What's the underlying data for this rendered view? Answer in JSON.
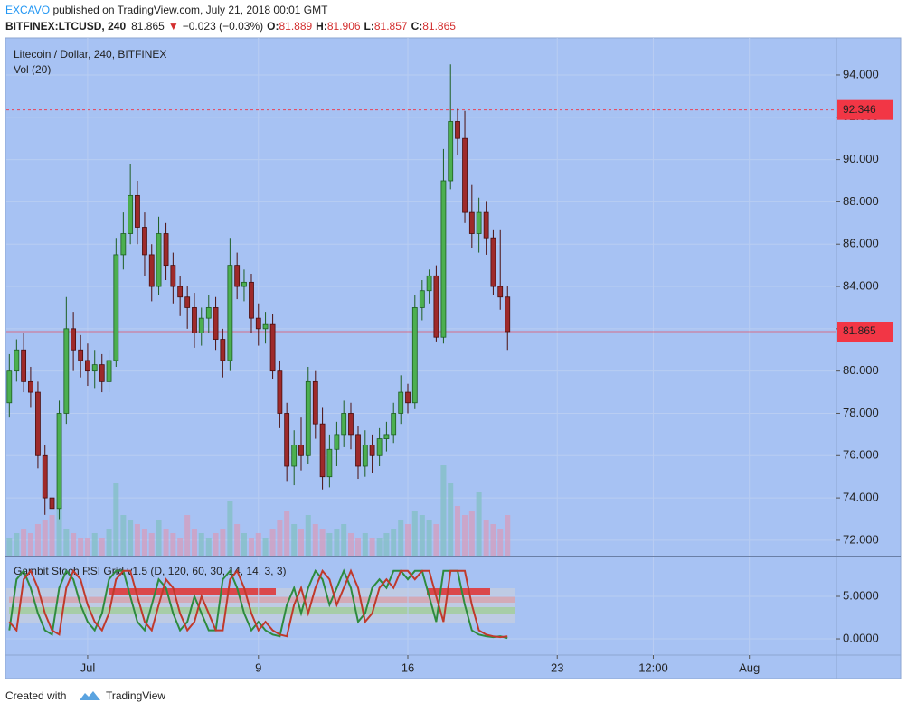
{
  "header": {
    "author": "EXCAVO",
    "published": " published on TradingView.com, July 21, 2018 00:01 GMT",
    "symbol": "BITFINEX:LTCUSD, 240",
    "last": "81.865",
    "arrow": "▼",
    "change": "−0.023 (−0.03%)",
    "o_label": "O:",
    "o_value": "81.889",
    "h_label": "H:",
    "h_value": "81.906",
    "l_label": "L:",
    "l_value": "81.857",
    "c_label": "C:",
    "c_value": "81.865"
  },
  "footer": {
    "created": "Created with",
    "brand": "TradingView"
  },
  "chart_data": [
    {
      "type": "candlestick",
      "title": "Litecoin / Dollar, 240, BITFINEX",
      "subtitle": "Vol (20)",
      "up_color": "#4caf50",
      "down_color": "#9e2a2a",
      "volume_up_color": "#7fbfbf",
      "volume_down_color": "#d99ab8",
      "xlim": [
        -2.81,
        36.08
      ],
      "xticks": [
        {
          "value": 1,
          "label": "Jul"
        },
        9,
        16,
        23,
        {
          "value": 27.5,
          "label": "12:00"
        },
        {
          "value": 32,
          "label": "Aug"
        }
      ],
      "ylim": [
        71.27,
        95.75
      ],
      "yticks": [
        {
          "value": 72,
          "label": "72.000"
        },
        {
          "value": 74,
          "label": "74.000"
        },
        {
          "value": 76,
          "label": "76.000"
        },
        {
          "value": 78,
          "label": "78.000"
        },
        {
          "value": 80,
          "label": "80.000"
        },
        {
          "value": 82,
          "label": "82.000"
        },
        {
          "value": 84,
          "label": "84.000"
        },
        {
          "value": 86,
          "label": "86.000"
        },
        {
          "value": 88,
          "label": "88.000"
        },
        {
          "value": 90,
          "label": "90.000"
        },
        {
          "value": 92,
          "label": "92.000"
        },
        {
          "value": 94,
          "label": "94.000"
        }
      ],
      "grid": true,
      "price_lines": [
        {
          "value": 92.346,
          "color": "#f23645",
          "dashed": true
        },
        {
          "value": 81.865,
          "color": "#f23645",
          "dashed": false
        }
      ],
      "x": [
        -2.67,
        -2.33,
        -2,
        -1.67,
        -1.33,
        -1,
        -0.67,
        -0.33,
        0,
        0.33,
        0.67,
        1,
        1.33,
        1.67,
        2,
        2.33,
        2.67,
        3,
        3.33,
        3.67,
        4,
        4.33,
        4.67,
        5,
        5.33,
        5.67,
        6,
        6.33,
        6.67,
        7,
        7.33,
        7.67,
        8,
        8.33,
        8.67,
        9,
        9.33,
        9.67,
        10,
        10.33,
        10.67,
        11,
        11.33,
        11.67,
        12,
        12.33,
        12.67,
        13,
        13.33,
        13.67,
        14,
        14.33,
        14.67,
        15,
        15.33,
        15.67,
        16,
        16.33,
        16.67,
        17,
        17.33,
        17.67,
        18,
        18.33,
        18.67,
        19,
        19.33,
        19.67,
        20,
        20.33,
        20.67
      ],
      "open": [
        78.5,
        80,
        81,
        79.5,
        79,
        76,
        74,
        73.5,
        78,
        82,
        81,
        80.5,
        80,
        80.3,
        79.5,
        80.5,
        85.5,
        86.5,
        88.3,
        86.8,
        85.5,
        84,
        86.5,
        85,
        84,
        83.5,
        83,
        81.8,
        82.5,
        83,
        81.5,
        80.5,
        85,
        84,
        84.2,
        82.5,
        82,
        82.2,
        80,
        78,
        75.5,
        76.5,
        76,
        79.5,
        77.5,
        75,
        76.3,
        77,
        78,
        77,
        75.5,
        76.5,
        76,
        76.8,
        77,
        78,
        79,
        78.5,
        83,
        83.8,
        84.5,
        81.6,
        89,
        91.8,
        91,
        87.5,
        86.5,
        87.5,
        86.3,
        84,
        83.5
      ],
      "high": [
        80.8,
        81.5,
        81.8,
        80.2,
        79.5,
        76.5,
        74.4,
        78.6,
        83.5,
        82.8,
        81.7,
        81.3,
        81,
        80.8,
        81,
        86.3,
        87.5,
        89.8,
        89,
        87.5,
        86,
        87.3,
        87,
        85.6,
        84.5,
        84,
        83.7,
        83,
        83.6,
        83.5,
        82,
        86.3,
        85.6,
        84.8,
        84.6,
        83.2,
        82.8,
        82.7,
        80.5,
        78.5,
        77.2,
        77.8,
        80.2,
        80,
        78.3,
        77,
        77.6,
        78.6,
        78.5,
        77.4,
        77.2,
        77,
        77.3,
        77.6,
        78.5,
        79.8,
        79.4,
        83.6,
        84.3,
        84.8,
        85,
        90.5,
        94.5,
        92.4,
        92.3,
        88.8,
        88.2,
        88,
        86.7,
        86.7,
        84
      ],
      "low": [
        77.8,
        79.5,
        79,
        78.3,
        75.4,
        73.2,
        72.6,
        73,
        77.5,
        80,
        79.7,
        79.3,
        79.2,
        79,
        79,
        80.2,
        84.8,
        86,
        86,
        84.5,
        83.3,
        83.6,
        84.3,
        83.2,
        82.6,
        82,
        81.1,
        81.2,
        81.8,
        81,
        79.7,
        80,
        83.4,
        83.3,
        81.8,
        81.2,
        81.3,
        79.6,
        77.3,
        74.8,
        74.6,
        75.3,
        75.6,
        76.8,
        74.4,
        74.5,
        75.5,
        76.4,
        76.3,
        74.9,
        75,
        75.2,
        75.5,
        76.2,
        76.6,
        77.5,
        78,
        78.2,
        82.4,
        83.2,
        81.4,
        81.3,
        88.6,
        90.2,
        87,
        85.8,
        85.6,
        85.5,
        83.6,
        82.9,
        81
      ],
      "close": [
        80,
        81,
        79.5,
        79,
        76,
        74,
        73.5,
        78,
        82,
        81,
        80.5,
        80,
        80.3,
        79.5,
        80.5,
        85.5,
        86.5,
        88.3,
        86.8,
        85.5,
        84,
        86.5,
        85,
        84,
        83.5,
        83,
        81.8,
        82.5,
        83,
        81.5,
        80.5,
        85,
        84,
        84.2,
        82.5,
        82,
        82.2,
        80,
        78,
        75.5,
        76.5,
        76,
        79.5,
        77.5,
        75,
        76.3,
        77,
        78,
        77,
        75.5,
        76.5,
        76,
        76.8,
        77,
        78,
        79,
        78.5,
        83,
        83.8,
        84.5,
        81.6,
        89,
        91.8,
        91,
        87.5,
        86.5,
        87.5,
        86.3,
        84,
        83.5,
        81.865
      ],
      "volume": [
        20,
        25,
        30,
        25,
        35,
        40,
        45,
        55,
        30,
        25,
        20,
        20,
        25,
        20,
        30,
        80,
        45,
        40,
        35,
        30,
        25,
        40,
        30,
        25,
        20,
        45,
        30,
        25,
        20,
        25,
        30,
        60,
        35,
        25,
        20,
        25,
        20,
        30,
        40,
        50,
        35,
        30,
        45,
        35,
        30,
        25,
        30,
        35,
        25,
        20,
        25,
        20,
        20,
        25,
        30,
        40,
        35,
        50,
        45,
        40,
        35,
        100,
        80,
        55,
        45,
        50,
        70,
        40,
        35,
        30,
        45
      ]
    },
    {
      "type": "line",
      "title": "Gambit Stoch RSI Grid v1.5 (D, 120, 60, 30, 14, 14, 3, 3)",
      "ylim": [
        -1.91,
        9.57
      ],
      "yticks": [
        {
          "value": 0,
          "label": "0.0000"
        },
        {
          "value": 5,
          "label": "5.0000"
        }
      ],
      "x": [
        -2.67,
        -2.33,
        -2,
        -1.67,
        -1.33,
        -1,
        -0.67,
        -0.33,
        0,
        0.33,
        0.67,
        1,
        1.33,
        1.67,
        2,
        2.33,
        2.67,
        3,
        3.33,
        3.67,
        4,
        4.33,
        4.67,
        5,
        5.33,
        5.67,
        6,
        6.33,
        6.67,
        7,
        7.33,
        7.67,
        8,
        8.33,
        8.67,
        9,
        9.33,
        9.67,
        10,
        10.33,
        10.67,
        11,
        11.33,
        11.67,
        12,
        12.33,
        12.67,
        13,
        13.33,
        13.67,
        14,
        14.33,
        14.67,
        15,
        15.33,
        15.67,
        16,
        16.33,
        16.67,
        17,
        17.33,
        17.67,
        18,
        18.33,
        18.67,
        19,
        19.33,
        19.67,
        20,
        20.33,
        20.67
      ],
      "series": [
        {
          "color": "#2e8b3e",
          "values": [
            1,
            7,
            8,
            6,
            3,
            1,
            0.5,
            6,
            8,
            7,
            4,
            2,
            1,
            3,
            7,
            8,
            8,
            5,
            2,
            1,
            4,
            7,
            6,
            3,
            1,
            2,
            5,
            3,
            1,
            1,
            7,
            8,
            6,
            3,
            1,
            2,
            1,
            0.5,
            0.3,
            4,
            6,
            3,
            6,
            8,
            7,
            4,
            6,
            8,
            6,
            2,
            3,
            6,
            7,
            6,
            8,
            8,
            7,
            8,
            8,
            5,
            2,
            8,
            8,
            8,
            4,
            1,
            0.5,
            0.3,
            0.2,
            0.3,
            0.1
          ]
        },
        {
          "color": "#c0392b",
          "values": [
            2,
            1,
            7,
            8,
            6,
            3,
            1,
            0.5,
            6,
            8,
            7,
            4,
            2,
            1,
            3,
            7,
            8,
            8,
            5,
            2,
            1,
            4,
            7,
            6,
            3,
            1,
            2,
            5,
            3,
            1,
            1,
            7,
            8,
            6,
            3,
            1,
            2,
            1,
            0.5,
            0.3,
            4,
            6,
            3,
            6,
            8,
            7,
            4,
            6,
            8,
            6,
            2,
            3,
            6,
            7,
            6,
            8,
            8,
            7,
            8,
            8,
            5,
            2,
            8,
            8,
            8,
            4,
            1,
            0.5,
            0.3,
            0.2,
            0.3
          ]
        }
      ]
    }
  ]
}
